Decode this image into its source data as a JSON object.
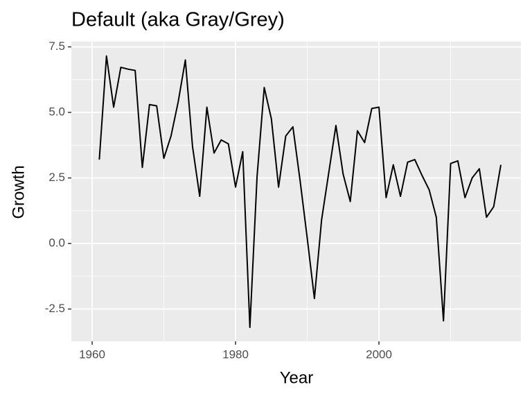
{
  "chart_data": {
    "type": "line",
    "title": "Default (aka Gray/Grey)",
    "xlabel": "Year",
    "ylabel": "Growth",
    "x": [
      1961,
      1962,
      1963,
      1964,
      1965,
      1966,
      1967,
      1968,
      1969,
      1970,
      1971,
      1972,
      1973,
      1974,
      1975,
      1976,
      1977,
      1978,
      1979,
      1980,
      1981,
      1982,
      1983,
      1984,
      1985,
      1986,
      1987,
      1988,
      1989,
      1990,
      1991,
      1992,
      1993,
      1994,
      1995,
      1996,
      1997,
      1998,
      1999,
      2000,
      2001,
      2002,
      2003,
      2004,
      2005,
      2006,
      2007,
      2008,
      2009,
      2010,
      2011,
      2012,
      2013,
      2014,
      2015,
      2016,
      2017
    ],
    "series": [
      {
        "color": "#000000",
        "values": [
          3.2,
          7.15,
          5.2,
          6.72,
          6.65,
          6.6,
          2.9,
          5.3,
          5.25,
          3.25,
          4.1,
          5.4,
          7.0,
          3.7,
          1.8,
          5.2,
          3.45,
          3.95,
          3.8,
          2.15,
          3.5,
          -3.2,
          2.55,
          5.95,
          4.75,
          2.15,
          4.1,
          4.45,
          2.4,
          0.2,
          -2.1,
          0.9,
          2.7,
          4.5,
          2.65,
          1.6,
          4.3,
          3.85,
          5.15,
          5.2,
          1.75,
          3.0,
          1.8,
          3.1,
          3.2,
          2.6,
          2.05,
          1.0,
          -2.95,
          3.05,
          3.15,
          1.75,
          2.5,
          2.85,
          1.0,
          1.4,
          3.0
        ]
      }
    ],
    "xlim": [
      1957.1,
      2019.8
    ],
    "ylim": [
      -3.73,
      7.7
    ],
    "xticks": [
      1960,
      1980,
      2000
    ],
    "yticks": [
      {
        "value": 7.5,
        "label": "7.5"
      },
      {
        "value": 5,
        "label": "5.0"
      },
      {
        "value": 2.5,
        "label": "2.5"
      },
      {
        "value": 0,
        "label": "0.0"
      },
      {
        "value": -2.5,
        "label": "-2.5"
      }
    ],
    "grid": true,
    "panel_color": "#ebebeb"
  }
}
